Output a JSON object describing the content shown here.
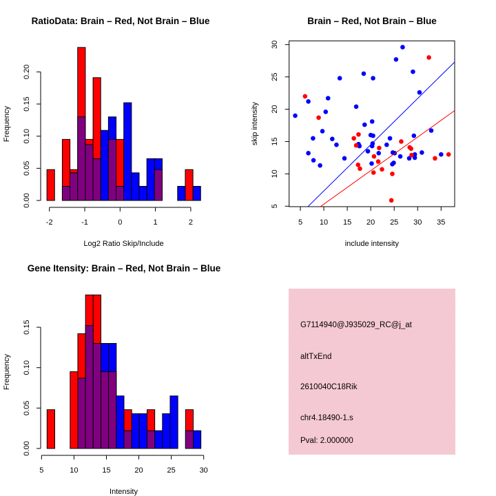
{
  "chart_data": [
    {
      "type": "bar",
      "kind": "histogram",
      "title": "RatioData: Brain – Red, Not Brain – Blue",
      "xlabel": "Log2 Ratio Skip/Include",
      "ylabel": "Frequency",
      "x_ticks": [
        "-2",
        "-1",
        "0",
        "1",
        "2"
      ],
      "x_tick_values": [
        -2,
        -1,
        0,
        1,
        2
      ],
      "y_ticks": [
        "0.00",
        "0.05",
        "0.10",
        "0.15",
        "0.20"
      ],
      "y_tick_values": [
        0,
        0.05,
        0.1,
        0.15,
        0.2
      ],
      "bin_start": -2.07,
      "bin_width": 0.2175,
      "series": [
        {
          "name": "Brain",
          "color": "#ff0000",
          "values": [
            0.048,
            0,
            0.095,
            0.048,
            0.238,
            0.095,
            0.191,
            0,
            0.095,
            0.095,
            0,
            0,
            0,
            0,
            0.048,
            0,
            0,
            0,
            0.048,
            0
          ]
        },
        {
          "name": "Not Brain",
          "color": "#0000ff",
          "values": [
            0,
            0,
            0.022,
            0.043,
            0.13,
            0.087,
            0.065,
            0.109,
            0.13,
            0.022,
            0.152,
            0.043,
            0.022,
            0.065,
            0.065,
            0,
            0,
            0.022,
            0,
            0.022
          ]
        }
      ],
      "overlap_color": "#800080"
    },
    {
      "type": "scatter",
      "title": "Brain – Red, Not Brain – Blue",
      "xlabel": "include intensity",
      "ylabel": "skip intensity",
      "x_ticks": [
        "5",
        "10",
        "15",
        "20",
        "25",
        "30",
        "35"
      ],
      "x_tick_values": [
        5,
        10,
        15,
        20,
        25,
        30,
        35
      ],
      "y_ticks": [
        "5",
        "10",
        "15",
        "20",
        "25",
        "30"
      ],
      "y_tick_values": [
        5,
        10,
        15,
        20,
        25,
        30
      ],
      "xlim": [
        2.6,
        37.9
      ],
      "ylim": [
        4.9,
        30.6
      ],
      "series": [
        {
          "name": "Not Brain",
          "color": "#0000ff",
          "points": [
            [
              3.9,
              19.0
            ],
            [
              6.7,
              21.2
            ],
            [
              6.7,
              13.2
            ],
            [
              7.7,
              15.5
            ],
            [
              7.8,
              12.1
            ],
            [
              9.2,
              11.3
            ],
            [
              9.7,
              16.6
            ],
            [
              10.4,
              19.6
            ],
            [
              10.9,
              21.7
            ],
            [
              11.8,
              15.4
            ],
            [
              12.7,
              14.5
            ],
            [
              13.4,
              24.8
            ],
            [
              14.4,
              12.4
            ],
            [
              16.9,
              20.4
            ],
            [
              17.4,
              14.6
            ],
            [
              17.6,
              14.3
            ],
            [
              17.5,
              14.4
            ],
            [
              18.5,
              25.5
            ],
            [
              18.7,
              17.6
            ],
            [
              19.4,
              13.5
            ],
            [
              20.0,
              16.0
            ],
            [
              20.2,
              11.6
            ],
            [
              20.3,
              18.1
            ],
            [
              20.3,
              14.3
            ],
            [
              20.4,
              14.7
            ],
            [
              20.5,
              15.9
            ],
            [
              20.5,
              24.8
            ],
            [
              21.7,
              13.2
            ],
            [
              23.4,
              14.5
            ],
            [
              24.1,
              15.5
            ],
            [
              24.7,
              13.3
            ],
            [
              25.1,
              13.2
            ],
            [
              24.6,
              11.5
            ],
            [
              24.9,
              11.7
            ],
            [
              25.4,
              27.7
            ],
            [
              26.3,
              12.7
            ],
            [
              26.8,
              29.6
            ],
            [
              28.2,
              12.4
            ],
            [
              29.0,
              25.8
            ],
            [
              29.2,
              15.9
            ],
            [
              29.4,
              13.0
            ],
            [
              29.4,
              12.5
            ],
            [
              30.4,
              22.6
            ],
            [
              30.9,
              13.3
            ],
            [
              32.9,
              16.7
            ],
            [
              35.0,
              13.0
            ]
          ],
          "fit": {
            "slope": 0.715,
            "intercept": 0.21
          }
        },
        {
          "name": "Brain",
          "color": "#ff0000",
          "points": [
            [
              6.0,
              22.0
            ],
            [
              8.9,
              18.7
            ],
            [
              16.4,
              15.5
            ],
            [
              16.9,
              14.4
            ],
            [
              17.4,
              16.1
            ],
            [
              17.3,
              11.4
            ],
            [
              17.7,
              10.8
            ],
            [
              20.7,
              12.7
            ],
            [
              20.6,
              10.2
            ],
            [
              21.8,
              14.0
            ],
            [
              21.6,
              11.9
            ],
            [
              22.4,
              10.7
            ],
            [
              24.6,
              10.0
            ],
            [
              24.4,
              5.9
            ],
            [
              26.5,
              15.0
            ],
            [
              28.3,
              14.1
            ],
            [
              28.6,
              13.9
            ],
            [
              28.7,
              12.9
            ],
            [
              32.4,
              28.0
            ],
            [
              33.7,
              12.4
            ],
            [
              36.6,
              13.0
            ]
          ],
          "fit": {
            "slope": 0.519,
            "intercept": 0.12
          }
        }
      ]
    },
    {
      "type": "bar",
      "kind": "histogram",
      "title": "Gene Itensity: Brain – Red, Not Brain – Blue",
      "xlabel": "Intensity",
      "ylabel": "Frequency",
      "x_ticks": [
        "5",
        "10",
        "15",
        "20",
        "25",
        "30"
      ],
      "x_tick_values": [
        5,
        10,
        15,
        20,
        25,
        30
      ],
      "y_ticks": [
        "0.00",
        "0.05",
        "0.10",
        "0.15"
      ],
      "y_tick_values": [
        0,
        0.05,
        0.1,
        0.15
      ],
      "bin_start": 5.85,
      "bin_width": 1.186,
      "series": [
        {
          "name": "Brain",
          "color": "#ff0000",
          "values": [
            0.048,
            0,
            0,
            0.095,
            0.142,
            0.19,
            0.19,
            0.095,
            0.095,
            0,
            0.048,
            0,
            0,
            0.048,
            0,
            0,
            0,
            0,
            0.048,
            0
          ]
        },
        {
          "name": "Not Brain",
          "color": "#0000ff",
          "values": [
            0,
            0,
            0,
            0,
            0.087,
            0.152,
            0.13,
            0.13,
            0.13,
            0.065,
            0.022,
            0.043,
            0.043,
            0.022,
            0.022,
            0.043,
            0.065,
            0,
            0.022,
            0.022
          ]
        }
      ],
      "overlap_color": "#800080"
    }
  ],
  "info_panel": {
    "background": "#f4c2cc",
    "probe_id": "G7114940@J935029_RC@j_at",
    "event_type": "altTxEnd",
    "gene": "2610040C18Rik",
    "location": "chr4.18490-1.s",
    "pval": "Pval: 2.000000",
    "pval_color": "#a00000"
  }
}
